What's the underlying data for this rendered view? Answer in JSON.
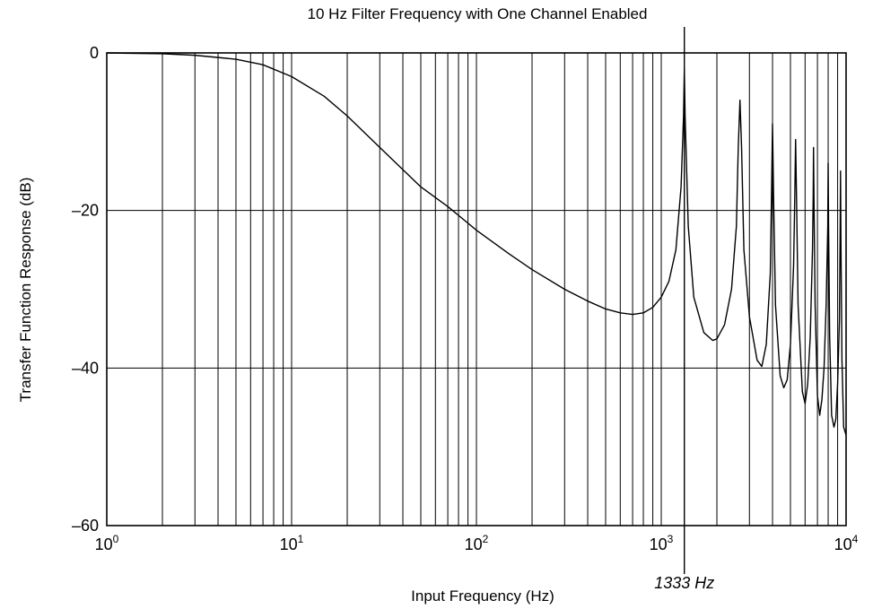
{
  "chart_data": {
    "type": "line",
    "title": "10 Hz Filter Frequency with One Channel Enabled",
    "xlabel": "Input Frequency (Hz)",
    "ylabel": "Transfer Function Response (dB)",
    "x_scale": "log",
    "xlim": [
      1,
      10000
    ],
    "ylim": [
      -60,
      0
    ],
    "grid": true,
    "x_ticks": [
      {
        "base": "10",
        "exp": "0",
        "value": 1
      },
      {
        "base": "10",
        "exp": "1",
        "value": 10
      },
      {
        "base": "10",
        "exp": "2",
        "value": 100
      },
      {
        "base": "10",
        "exp": "3",
        "value": 1000
      },
      {
        "base": "10",
        "exp": "4",
        "value": 10000
      }
    ],
    "y_ticks": [
      {
        "label": "0",
        "value": 0
      },
      {
        "label": "–20",
        "value": -20
      },
      {
        "label": "–40",
        "value": -40
      },
      {
        "label": "–60",
        "value": -60
      }
    ],
    "series": [
      {
        "x": [
          1,
          2,
          3,
          5,
          7,
          10,
          15,
          20,
          30,
          50,
          70,
          100,
          150,
          200,
          300,
          400,
          500,
          600,
          700,
          800,
          900,
          1000,
          1100,
          1200,
          1280,
          1320,
          1333,
          1346,
          1400,
          1500,
          1700,
          1900,
          2000,
          2200,
          2400,
          2550,
          2610,
          2666,
          2720,
          2800,
          3000,
          3300,
          3500,
          3700,
          3890,
          3950,
          3999,
          4050,
          4150,
          4400,
          4600,
          4800,
          5000,
          5200,
          5280,
          5332,
          5390,
          5500,
          5800,
          6000,
          6200,
          6400,
          6580,
          6640,
          6665,
          6700,
          6800,
          7000,
          7200,
          7400,
          7600,
          7800,
          7960,
          7998,
          8040,
          8150,
          8350,
          8600,
          8800,
          9000,
          9200,
          9280,
          9331,
          9380,
          9500,
          9700,
          10000
        ],
        "y": [
          0,
          -0.1,
          -0.3,
          -0.8,
          -1.5,
          -3.0,
          -5.5,
          -8.0,
          -12.0,
          -17.0,
          -19.5,
          -22.5,
          -25.5,
          -27.5,
          -30.0,
          -31.5,
          -32.5,
          -33.0,
          -33.2,
          -33.0,
          -32.3,
          -31.0,
          -29.0,
          -25.0,
          -17.0,
          -8.0,
          -2.0,
          -8.0,
          -22.0,
          -31.0,
          -35.5,
          -36.5,
          -36.3,
          -34.5,
          -30.0,
          -22.0,
          -12.0,
          -6.0,
          -12.0,
          -25.0,
          -33.5,
          -39.0,
          -39.8,
          -37.0,
          -28.0,
          -18.0,
          -9.0,
          -18.0,
          -32.0,
          -41.0,
          -42.5,
          -41.5,
          -37.0,
          -27.0,
          -18.0,
          -11.0,
          -18.0,
          -32.0,
          -43.0,
          -44.5,
          -42.0,
          -36.0,
          -25.0,
          -18.0,
          -12.0,
          -18.0,
          -32.0,
          -43.5,
          -46.0,
          -44.0,
          -40.0,
          -32.0,
          -22.0,
          -14.0,
          -22.0,
          -36.0,
          -46.0,
          -47.5,
          -46.5,
          -42.0,
          -34.0,
          -24.0,
          -15.0,
          -24.0,
          -39.0,
          -47.5,
          -48.5
        ]
      }
    ],
    "annotations": [
      {
        "text": "1333 Hz",
        "x": 1333
      }
    ]
  }
}
